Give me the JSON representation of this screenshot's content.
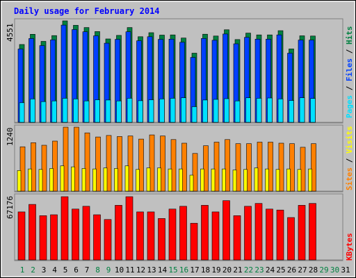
{
  "chart_data": {
    "type": "bar",
    "title": "Daily usage for February 2014",
    "colors": {
      "background": "#c0c0c0",
      "title": "#0000ff",
      "hits": "#008040",
      "files": "#0040ff",
      "pages": "#00e0ff",
      "visits": "#ff8000",
      "sites": "#ffff00",
      "kbytes": "#ff0000",
      "weekday_label": "#000000",
      "weekend_label": "#008040"
    },
    "x": [
      1,
      2,
      3,
      4,
      5,
      6,
      7,
      8,
      9,
      10,
      11,
      12,
      13,
      14,
      15,
      16,
      17,
      18,
      19,
      20,
      21,
      22,
      23,
      24,
      25,
      26,
      27,
      28,
      29,
      30,
      31
    ],
    "weekend_days": [
      1,
      2,
      8,
      9,
      15,
      16,
      22,
      23,
      29,
      30
    ],
    "panels": [
      {
        "ylabels": [
          "Hits",
          "Files",
          "Pages"
        ],
        "ymax_label": "4551",
        "ylim": [
          0,
          4551
        ],
        "series": [
          {
            "name": "Hits",
            "values": [
              3490,
              3950,
              3630,
              3890,
              4551,
              4351,
              4251,
              4071,
              3741,
              3901,
              4251,
              3841,
              4021,
              3911,
              3921,
              3781,
              3101,
              3951,
              3871,
              4151,
              3711,
              4001,
              3921,
              3921,
              4111,
              3291,
              3881,
              3871
            ]
          },
          {
            "name": "Files",
            "values": [
              3290,
              3760,
              3440,
              3700,
              4361,
              4161,
              4061,
              3881,
              3551,
              3721,
              4061,
              3661,
              3841,
              3721,
              3731,
              3591,
              2911,
              3761,
              3681,
              3961,
              3521,
              3811,
              3731,
              3731,
              3921,
              3101,
              3691,
              3691
            ]
          },
          {
            "name": "Pages",
            "values": [
              880,
              1050,
              930,
              960,
              1080,
              1050,
              960,
              1010,
              1000,
              960,
              1080,
              970,
              1010,
              1050,
              1080,
              1100,
              700,
              1000,
              1030,
              1060,
              960,
              1100,
              1080,
              1090,
              1050,
              980,
              1100,
              1070
            ]
          }
        ]
      },
      {
        "ylabels": [
          "Visits",
          "Sites"
        ],
        "ymax_label": "1240",
        "ylim": [
          0,
          1240
        ],
        "series": [
          {
            "name": "Visits",
            "values": [
              860,
              940,
              890,
              970,
              1240,
              1240,
              1130,
              1050,
              1080,
              1060,
              1070,
              1010,
              1090,
              1070,
              1000,
              930,
              730,
              880,
              950,
              1000,
              920,
              920,
              950,
              950,
              930,
              920,
              850,
              920
            ]
          },
          {
            "name": "Sites",
            "values": [
              400,
              430,
              420,
              440,
              490,
              470,
              440,
              430,
              450,
              440,
              490,
              420,
              450,
              450,
              430,
              430,
              310,
              430,
              430,
              430,
              410,
              420,
              450,
              430,
              420,
              430,
              420,
              430
            ]
          }
        ]
      },
      {
        "ylabels": [
          "KBytes"
        ],
        "ymax_label": "67176",
        "ylim": [
          0,
          67176
        ],
        "series": [
          {
            "name": "KBytes",
            "values": [
              51000,
              59000,
              47000,
              48000,
              67176,
              54000,
              57000,
              48000,
              43000,
              58000,
              67176,
              51000,
              51000,
              44000,
              54000,
              57000,
              39000,
              58000,
              51000,
              63000,
              47000,
              57000,
              60000,
              54000,
              53000,
              45000,
              58000,
              60000
            ]
          }
        ]
      }
    ]
  }
}
